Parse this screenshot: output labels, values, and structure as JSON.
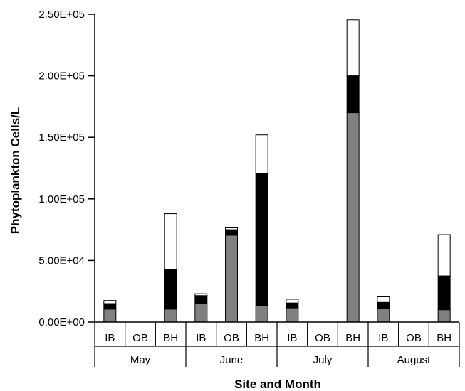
{
  "chart_data": {
    "type": "bar",
    "stacked": true,
    "ylabel": "Phytoplankton Cells/L",
    "xlabel": "Site and Month",
    "ylim": [
      0,
      250000
    ],
    "yticks": [
      "0.00E+00",
      "5.00E+04",
      "1.00E+05",
      "1.50E+05",
      "2.00E+05",
      "2.50E+05"
    ],
    "groups": [
      "May",
      "June",
      "July",
      "August"
    ],
    "categories": [
      "IB",
      "OB",
      "BH",
      "IB",
      "OB",
      "BH",
      "IB",
      "OB",
      "BH",
      "IB",
      "OB",
      "BH"
    ],
    "series": [
      {
        "color": "#808080",
        "values": [
          10500,
          0,
          10500,
          15000,
          70500,
          13000,
          11500,
          0,
          170000,
          11000,
          0,
          10000
        ]
      },
      {
        "color": "#000000",
        "values": [
          4500,
          0,
          32500,
          6500,
          4500,
          107500,
          4000,
          0,
          30000,
          5000,
          0,
          27500
        ]
      },
      {
        "color": "#ffffff",
        "values": [
          2500,
          0,
          45000,
          1500,
          1500,
          31500,
          3000,
          0,
          45500,
          4500,
          0,
          33500
        ]
      }
    ],
    "grid": false,
    "legend": "none"
  }
}
